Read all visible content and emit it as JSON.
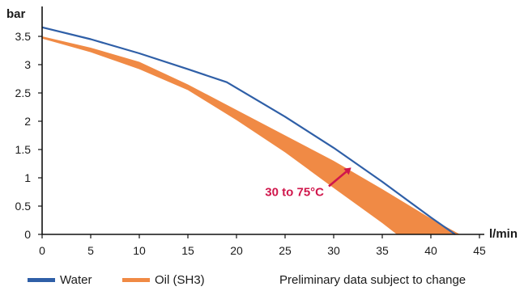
{
  "colors": {
    "water": "#2f5fa7",
    "oil": "#f08a45",
    "annotation": "#d0174c",
    "axis": "#111111"
  },
  "legend": {
    "water_label": "Water",
    "oil_label": "Oil (SH3)",
    "note": "Preliminary data subject to change"
  },
  "chart_data": {
    "type": "area",
    "title": "",
    "xlabel": "l/min",
    "ylabel": "bar",
    "xlim": [
      0,
      45
    ],
    "ylim": [
      0,
      4
    ],
    "x_ticks": [
      0,
      5,
      10,
      15,
      20,
      25,
      30,
      35,
      40,
      45
    ],
    "y_ticks": [
      0,
      0.5,
      1,
      1.5,
      2,
      2.5,
      3,
      3.5
    ],
    "grid": false,
    "legend_position": "bottom",
    "series": [
      {
        "name": "Water",
        "type": "line",
        "x": [
          0,
          5,
          10,
          15,
          19,
          25,
          30,
          35,
          40,
          42.5
        ],
        "y": [
          3.66,
          3.45,
          3.2,
          2.92,
          2.69,
          2.08,
          1.53,
          0.93,
          0.3,
          0
        ]
      },
      {
        "name": "Oil (SH3)",
        "type": "band",
        "x_upper": [
          0,
          5,
          10,
          15,
          20,
          25,
          30,
          35,
          40,
          43
        ],
        "y_upper": [
          3.5,
          3.3,
          3.05,
          2.65,
          2.2,
          1.75,
          1.3,
          0.8,
          0.28,
          0
        ],
        "x_lower": [
          0,
          5,
          10,
          15,
          20,
          25,
          30,
          35,
          36.5
        ],
        "y_lower": [
          3.46,
          3.22,
          2.92,
          2.55,
          2.02,
          1.45,
          0.82,
          0.2,
          0
        ]
      }
    ],
    "annotations": [
      {
        "text": "30 to 75°C",
        "arrow_from": [
          29.5,
          0.85
        ],
        "arrow_to": [
          31.8,
          1.18
        ]
      }
    ]
  }
}
